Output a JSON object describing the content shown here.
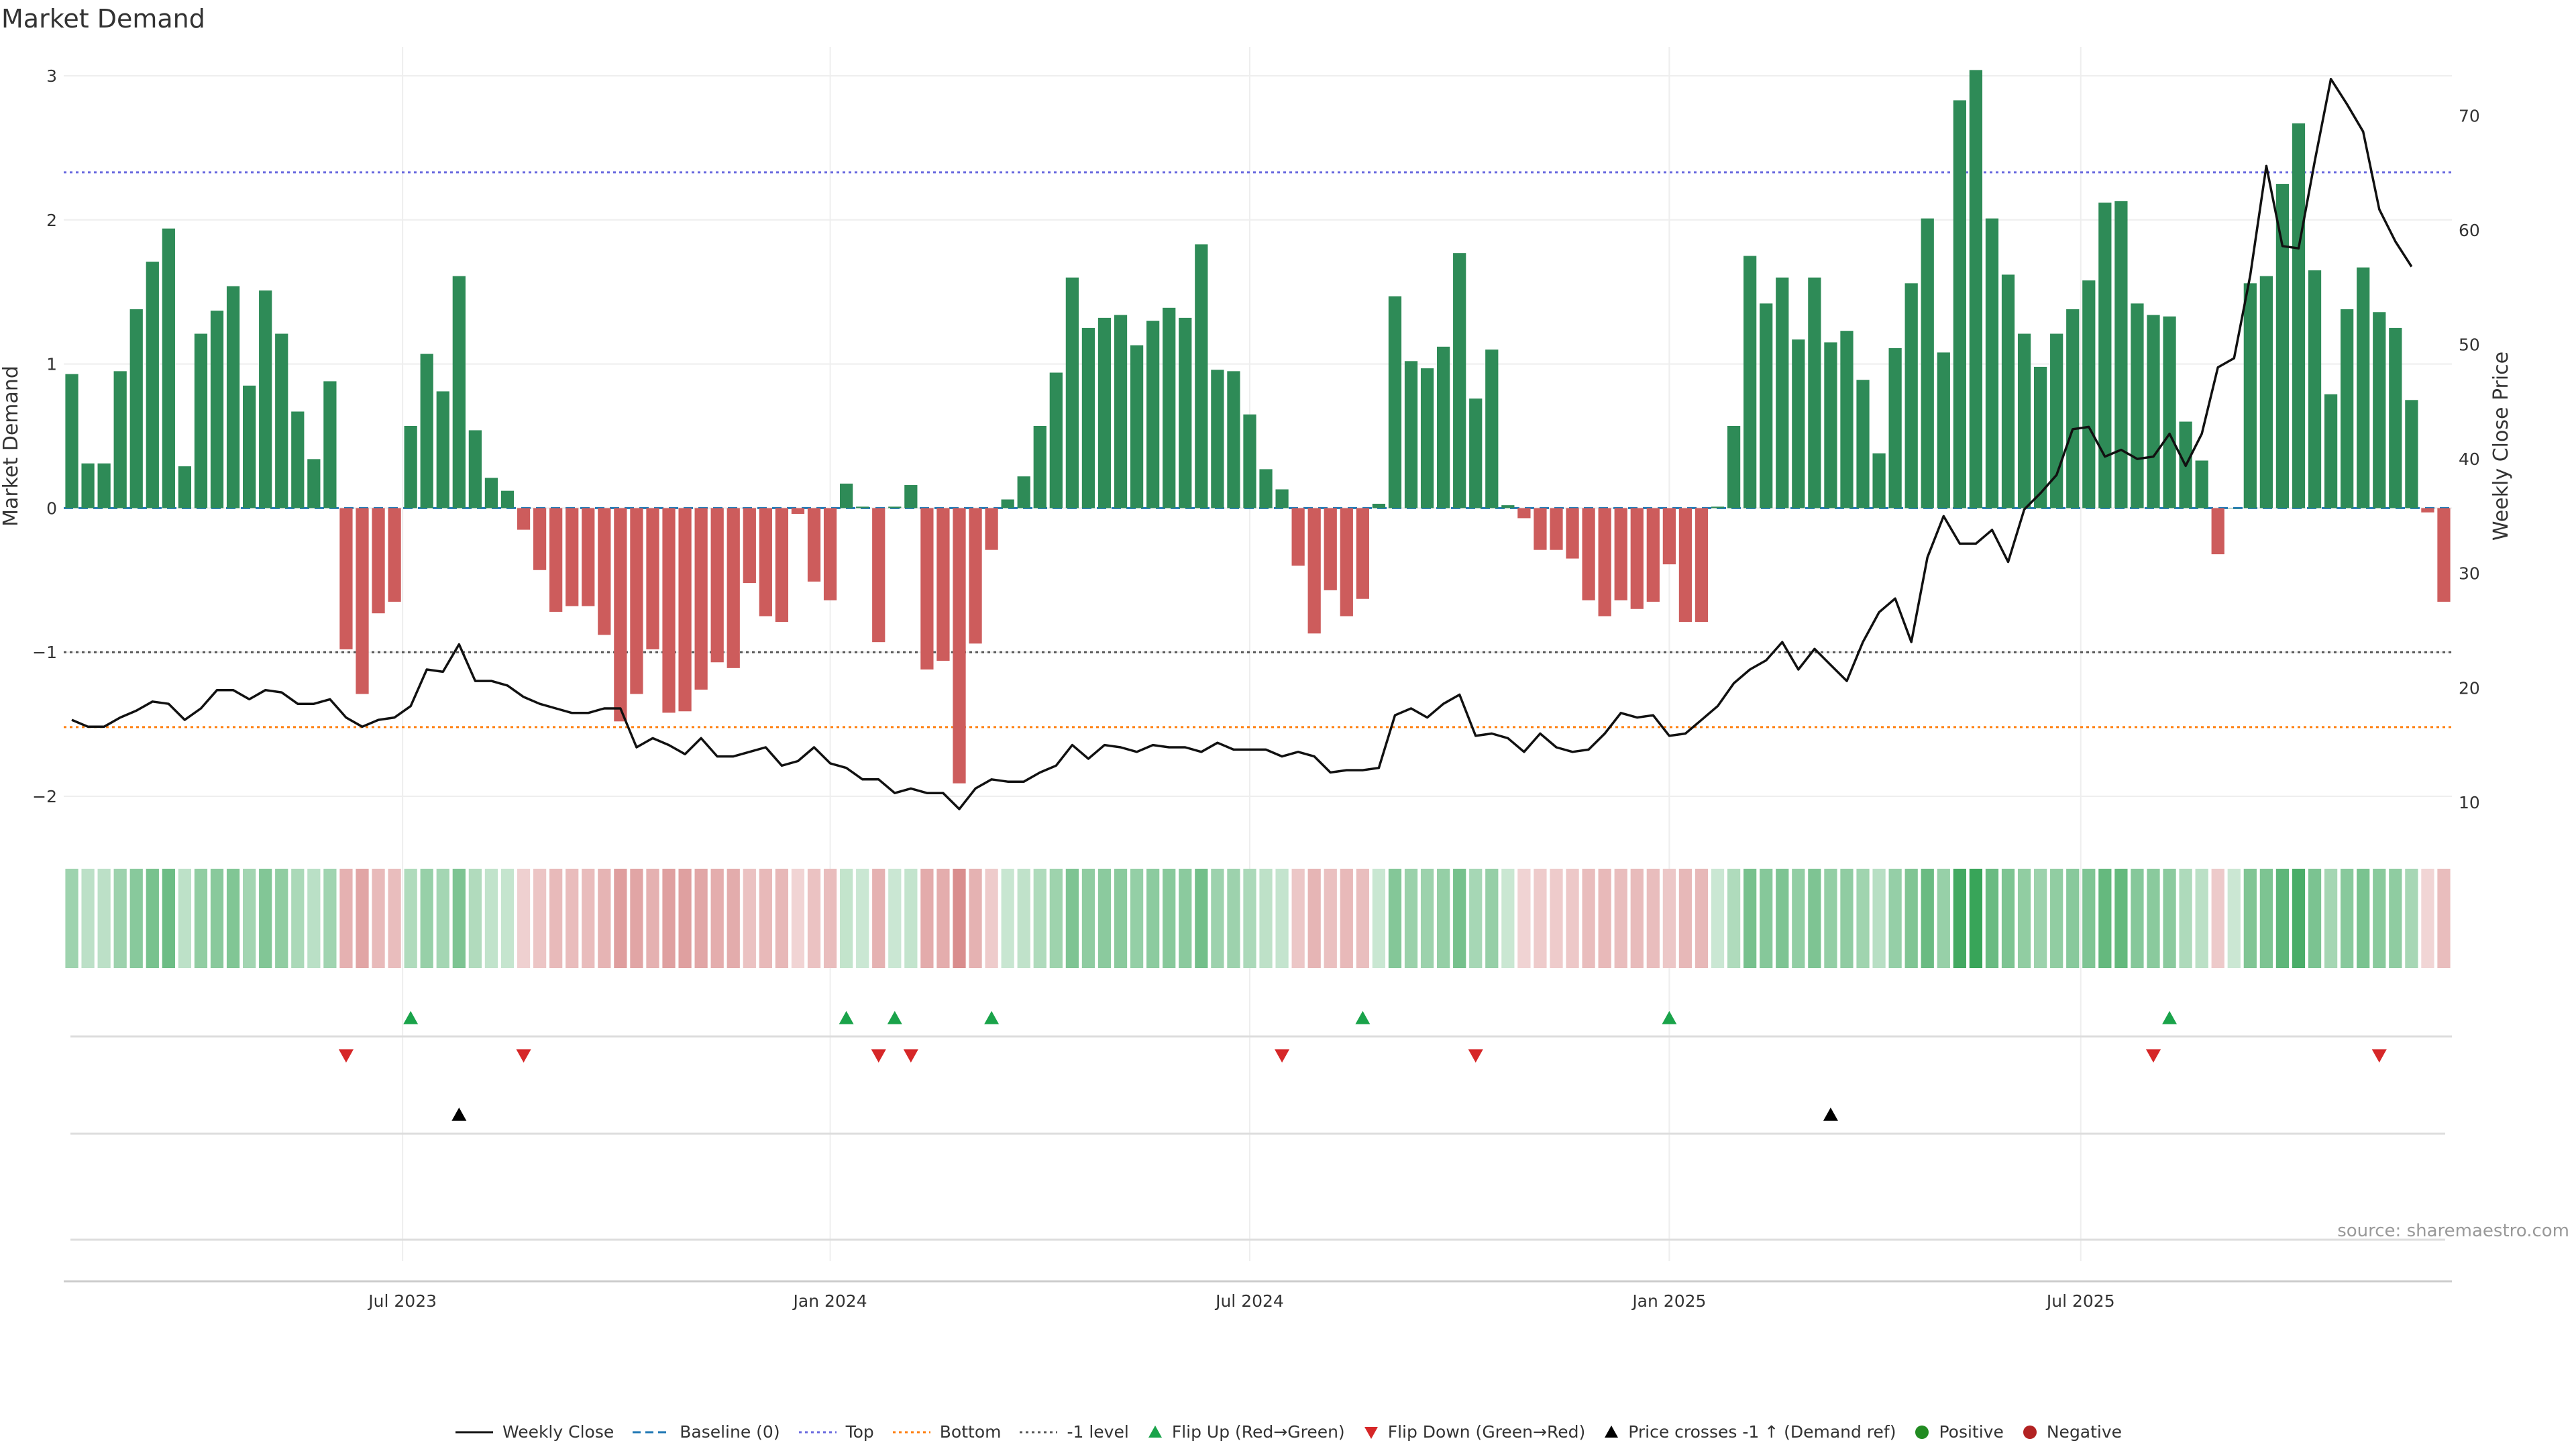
{
  "title": "Market Demand",
  "source_label": "source: sharemaestro.com",
  "colors": {
    "positive_bar": "#2e8b57",
    "negative_bar": "#cd5c5c",
    "price_line": "#111111",
    "baseline": "#1f77b4",
    "top": "#6a6adf",
    "bottom": "#ff7f0e",
    "minus1": "#555555",
    "flip_up": "#1aa34a",
    "flip_down": "#d62728",
    "cross": "#000000",
    "legend_positive": "#228b22",
    "legend_negative": "#b22222"
  },
  "chart_data": {
    "type": "bar",
    "title": "Market Demand",
    "ylabel_left": "Market Demand",
    "ylabel_right": "Weekly Close Price",
    "ylim_left": [
      -2.2,
      3.2
    ],
    "ylim_right": [
      8,
      76
    ],
    "left_ticks": [
      "−2",
      "−1",
      "0",
      "1",
      "2",
      "3"
    ],
    "left_tick_values": [
      -2,
      -1,
      0,
      1,
      2,
      3
    ],
    "right_ticks": [
      "10",
      "20",
      "30",
      "40",
      "50",
      "60",
      "70"
    ],
    "right_tick_values": [
      10,
      20,
      30,
      40,
      50,
      60,
      70
    ],
    "x_ticks": [
      "Jul 2023",
      "Jan 2024",
      "Jul 2024",
      "Jan 2025",
      "Jul 2025"
    ],
    "x_tick_weeks": [
      21,
      47.5,
      73.5,
      99.5,
      125
    ],
    "grid": true,
    "legend_position": "bottom",
    "reference_lines": {
      "baseline": 0,
      "top": 2.33,
      "bottom": -1.52,
      "minus_one": -1
    },
    "demand": [
      0.93,
      0.31,
      0.31,
      0.95,
      1.38,
      1.71,
      1.94,
      0.29,
      1.21,
      1.37,
      1.54,
      0.85,
      1.51,
      1.21,
      0.67,
      0.34,
      0.88,
      -0.98,
      -1.29,
      -0.73,
      -0.65,
      0.57,
      1.07,
      0.81,
      1.61,
      0.54,
      0.21,
      0.12,
      -0.15,
      -0.43,
      -0.72,
      -0.68,
      -0.68,
      -0.88,
      -1.48,
      -1.29,
      -0.98,
      -1.42,
      -1.41,
      -1.26,
      -1.07,
      -1.11,
      -0.52,
      -0.75,
      -0.79,
      -0.04,
      -0.51,
      -0.64,
      0.17,
      0.01,
      -0.93,
      0.01,
      0.16,
      -1.12,
      -1.06,
      -1.91,
      -0.94,
      -0.29,
      0.06,
      0.22,
      0.57,
      0.94,
      1.6,
      1.25,
      1.32,
      1.34,
      1.13,
      1.3,
      1.39,
      1.32,
      1.83,
      0.96,
      0.95,
      0.65,
      0.27,
      0.13,
      -0.4,
      -0.87,
      -0.57,
      -0.75,
      -0.63,
      0.03,
      1.47,
      1.02,
      0.97,
      1.12,
      1.77,
      0.76,
      1.1,
      0.02,
      -0.07,
      -0.29,
      -0.29,
      -0.35,
      -0.64,
      -0.75,
      -0.64,
      -0.7,
      -0.65,
      -0.39,
      -0.79,
      -0.79,
      0.01,
      0.57,
      1.75,
      1.42,
      1.6,
      1.17,
      1.6,
      1.15,
      1.23,
      0.89,
      0.38,
      1.11,
      1.56,
      2.01,
      1.08,
      2.83,
      3.04,
      2.01,
      1.62,
      1.21,
      0.98,
      1.21,
      1.38,
      1.58,
      2.12,
      2.13,
      1.42,
      1.34,
      1.33,
      0.6,
      0.33,
      -0.32,
      0.0,
      1.56,
      1.61,
      2.25,
      2.67,
      1.65,
      0.79,
      1.38,
      1.67,
      1.36,
      1.25,
      0.75,
      -0.03,
      -0.65
    ],
    "close": [
      17.2,
      16.6,
      16.6,
      17.4,
      18.0,
      18.8,
      18.6,
      17.2,
      18.2,
      19.8,
      19.8,
      19.0,
      19.8,
      19.6,
      18.6,
      18.6,
      19.0,
      17.4,
      16.6,
      17.2,
      17.4,
      18.4,
      21.6,
      21.4,
      23.8,
      20.6,
      20.6,
      20.2,
      19.2,
      18.6,
      18.2,
      17.8,
      17.8,
      18.2,
      18.2,
      14.8,
      15.6,
      15.0,
      14.2,
      15.6,
      14.0,
      14.0,
      14.4,
      14.8,
      13.2,
      13.6,
      14.8,
      13.4,
      13.0,
      12.0,
      12.0,
      10.8,
      11.2,
      10.8,
      10.8,
      9.4,
      11.2,
      12.0,
      11.8,
      11.8,
      12.6,
      13.2,
      15.0,
      13.8,
      15.0,
      14.8,
      14.4,
      15.0,
      14.8,
      14.8,
      14.4,
      15.2,
      14.6,
      14.6,
      14.6,
      14.0,
      14.4,
      14.0,
      12.6,
      12.8,
      12.8,
      13.0,
      17.6,
      18.2,
      17.4,
      18.6,
      19.4,
      15.8,
      16.0,
      15.6,
      14.4,
      16.0,
      14.8,
      14.4,
      14.6,
      16.0,
      17.8,
      17.4,
      17.6,
      15.8,
      16.0,
      17.2,
      18.4,
      20.4,
      21.6,
      22.4,
      24.0,
      21.6,
      23.4,
      22.0,
      20.6,
      24.0,
      26.6,
      27.8,
      24.0,
      31.4,
      35.0,
      32.6,
      32.6,
      33.8,
      31.0,
      35.6,
      37.0,
      38.6,
      42.6,
      42.8,
      40.2,
      40.8,
      40.0,
      40.2,
      42.2,
      39.4,
      42.2,
      48.0,
      48.8,
      56.0,
      65.6,
      58.6,
      58.4,
      66.0,
      73.2,
      71.0,
      68.6,
      61.8,
      59.0,
      56.8
    ],
    "flip_up_weeks": [
      21,
      48,
      51,
      57,
      80,
      99,
      130
    ],
    "flip_down_weeks": [
      17,
      28,
      50,
      52,
      75,
      87,
      129,
      143
    ],
    "price_cross_weeks": [
      24,
      109
    ],
    "legend": [
      {
        "label": "Weekly Close",
        "kind": "line",
        "color": "#111111"
      },
      {
        "label": "Baseline (0)",
        "kind": "dashed",
        "color": "#1f77b4"
      },
      {
        "label": "Top",
        "kind": "dotted",
        "color": "#6a6adf"
      },
      {
        "label": "Bottom",
        "kind": "dotted",
        "color": "#ff7f0e"
      },
      {
        "label": "-1 level",
        "kind": "dotted",
        "color": "#555555"
      },
      {
        "label": "Flip Up (Red→Green)",
        "kind": "tri-up",
        "color": "#1aa34a"
      },
      {
        "label": "Flip Down (Green→Red)",
        "kind": "tri-down",
        "color": "#d62728"
      },
      {
        "label": "Price crosses -1 ↑ (Demand ref)",
        "kind": "tri-up",
        "color": "#000000"
      },
      {
        "label": "Positive",
        "kind": "dot",
        "color": "#228b22"
      },
      {
        "label": "Negative",
        "kind": "dot",
        "color": "#b22222"
      }
    ]
  }
}
